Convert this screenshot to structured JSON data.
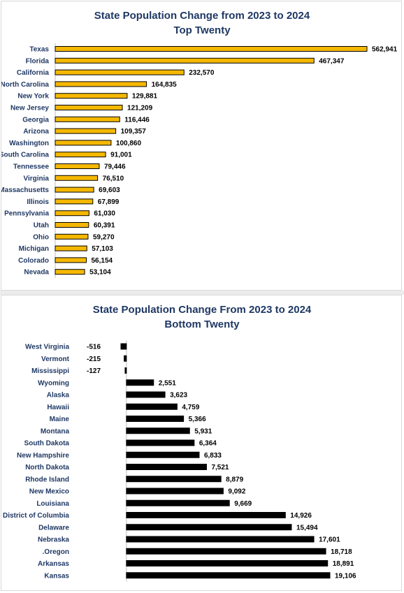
{
  "chart_data": [
    {
      "type": "bar",
      "orientation": "horizontal",
      "title": "State Population Change from 2023 to 2024",
      "subtitle": "Top Twenty",
      "bar_color": "#f5b800",
      "bar_edge_color": "#000000",
      "categories": [
        "Texas",
        "Florida",
        "California",
        "North Carolina",
        "New York",
        "New Jersey",
        "Georgia",
        "Arizona",
        "Washington",
        "South Carolina",
        "Tennessee",
        "Virginia",
        "Massachusetts",
        "Illinois",
        "Pennsylvania",
        "Utah",
        "Ohio",
        "Michigan",
        "Colorado",
        "Nevada"
      ],
      "values": [
        562941,
        467347,
        232570,
        164835,
        129881,
        121209,
        116446,
        109357,
        100860,
        91001,
        79446,
        76510,
        69603,
        67899,
        61030,
        60391,
        59270,
        57103,
        56154,
        53104
      ],
      "labels": [
        "562,941",
        "467,347",
        "232,570",
        "164,835",
        "129,881",
        "121,209",
        "116,446",
        "109,357",
        "100,860",
        "91,001",
        "79,446",
        "76,510",
        "69,603",
        "67,899",
        "61,030",
        "60,391",
        "59,270",
        "57,103",
        "56,154",
        "53,104"
      ],
      "xlim": [
        0,
        562941
      ],
      "grid": false,
      "legend": "none"
    },
    {
      "type": "bar",
      "orientation": "horizontal",
      "title": "State Population Change From 2023 to 2024",
      "subtitle": "Bottom Twenty",
      "bar_color": "#000000",
      "bar_edge_color": "#000000",
      "categories": [
        "West Virginia",
        "Vermont",
        "Mississippi",
        "Wyoming",
        "Alaska",
        "Hawaii",
        "Maine",
        "Montana",
        "South Dakota",
        "New Hampshire",
        "North Dakota",
        "Rhode Island",
        "New Mexico",
        "Louisiana",
        "District of Columbia",
        "Delaware",
        "Nebraska",
        ".Oregon",
        "Arkansas",
        "Kansas"
      ],
      "values": [
        -516,
        -215,
        -127,
        2551,
        3623,
        4759,
        5366,
        5931,
        6364,
        6833,
        7521,
        8879,
        9092,
        9669,
        14926,
        15494,
        17601,
        18718,
        18891,
        19106
      ],
      "labels": [
        "-516",
        "-215",
        "-127",
        "2,551",
        "3,623",
        "4,759",
        "5,366",
        "5,931",
        "6,364",
        "6,833",
        "7,521",
        "8,879",
        "9,092",
        "9,669",
        "14,926",
        "15,494",
        "17,601",
        "18,718",
        "18,891",
        "19,106"
      ],
      "xlim": [
        -516,
        19106
      ],
      "grid": false,
      "legend": "none"
    }
  ]
}
